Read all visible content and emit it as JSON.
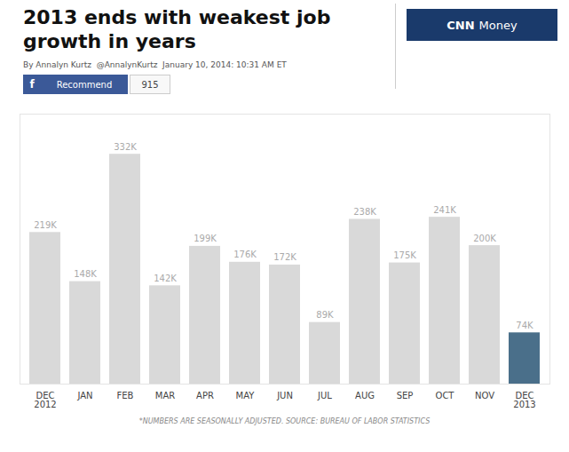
{
  "chart_data": {
    "type": "bar",
    "title": "2013 ends with weakest job\ngrowth in years",
    "subtitle": "By Annalyn Kurtz  @AnnalynKurtz  January 10, 2014: 10:31 AM ET",
    "annotations": [
      "CNN",
      "Money",
      "f",
      "Recommend",
      "915",
      "*NUMBERS ARE SEASONALLY ADJUSTED. SOURCE: BUREAU OF LABOR STATISTICS"
    ],
    "categories": [
      "DEC\n2012",
      "JAN",
      "FEB",
      "MAR",
      "APR",
      "MAY",
      "JUN",
      "JUL",
      "AUG",
      "SEP",
      "OCT",
      "NOV",
      "DEC\n2013"
    ],
    "values": [
      219,
      148,
      332,
      142,
      199,
      176,
      172,
      89,
      238,
      175,
      241,
      200,
      74
    ],
    "value_labels": [
      "219K",
      "148K",
      "332K",
      "142K",
      "199K",
      "176K",
      "172K",
      "89K",
      "238K",
      "175K",
      "241K",
      "200K",
      "74K"
    ],
    "colors": [
      "#d9d9d9",
      "#d9d9d9",
      "#d9d9d9",
      "#d9d9d9",
      "#d9d9d9",
      "#d9d9d9",
      "#d9d9d9",
      "#d9d9d9",
      "#d9d9d9",
      "#d9d9d9",
      "#d9d9d9",
      "#d9d9d9",
      "#4a6f8a"
    ],
    "ylim": [
      0,
      390
    ],
    "data_labels": true,
    "tick_labels": "x",
    "grid": false
  }
}
